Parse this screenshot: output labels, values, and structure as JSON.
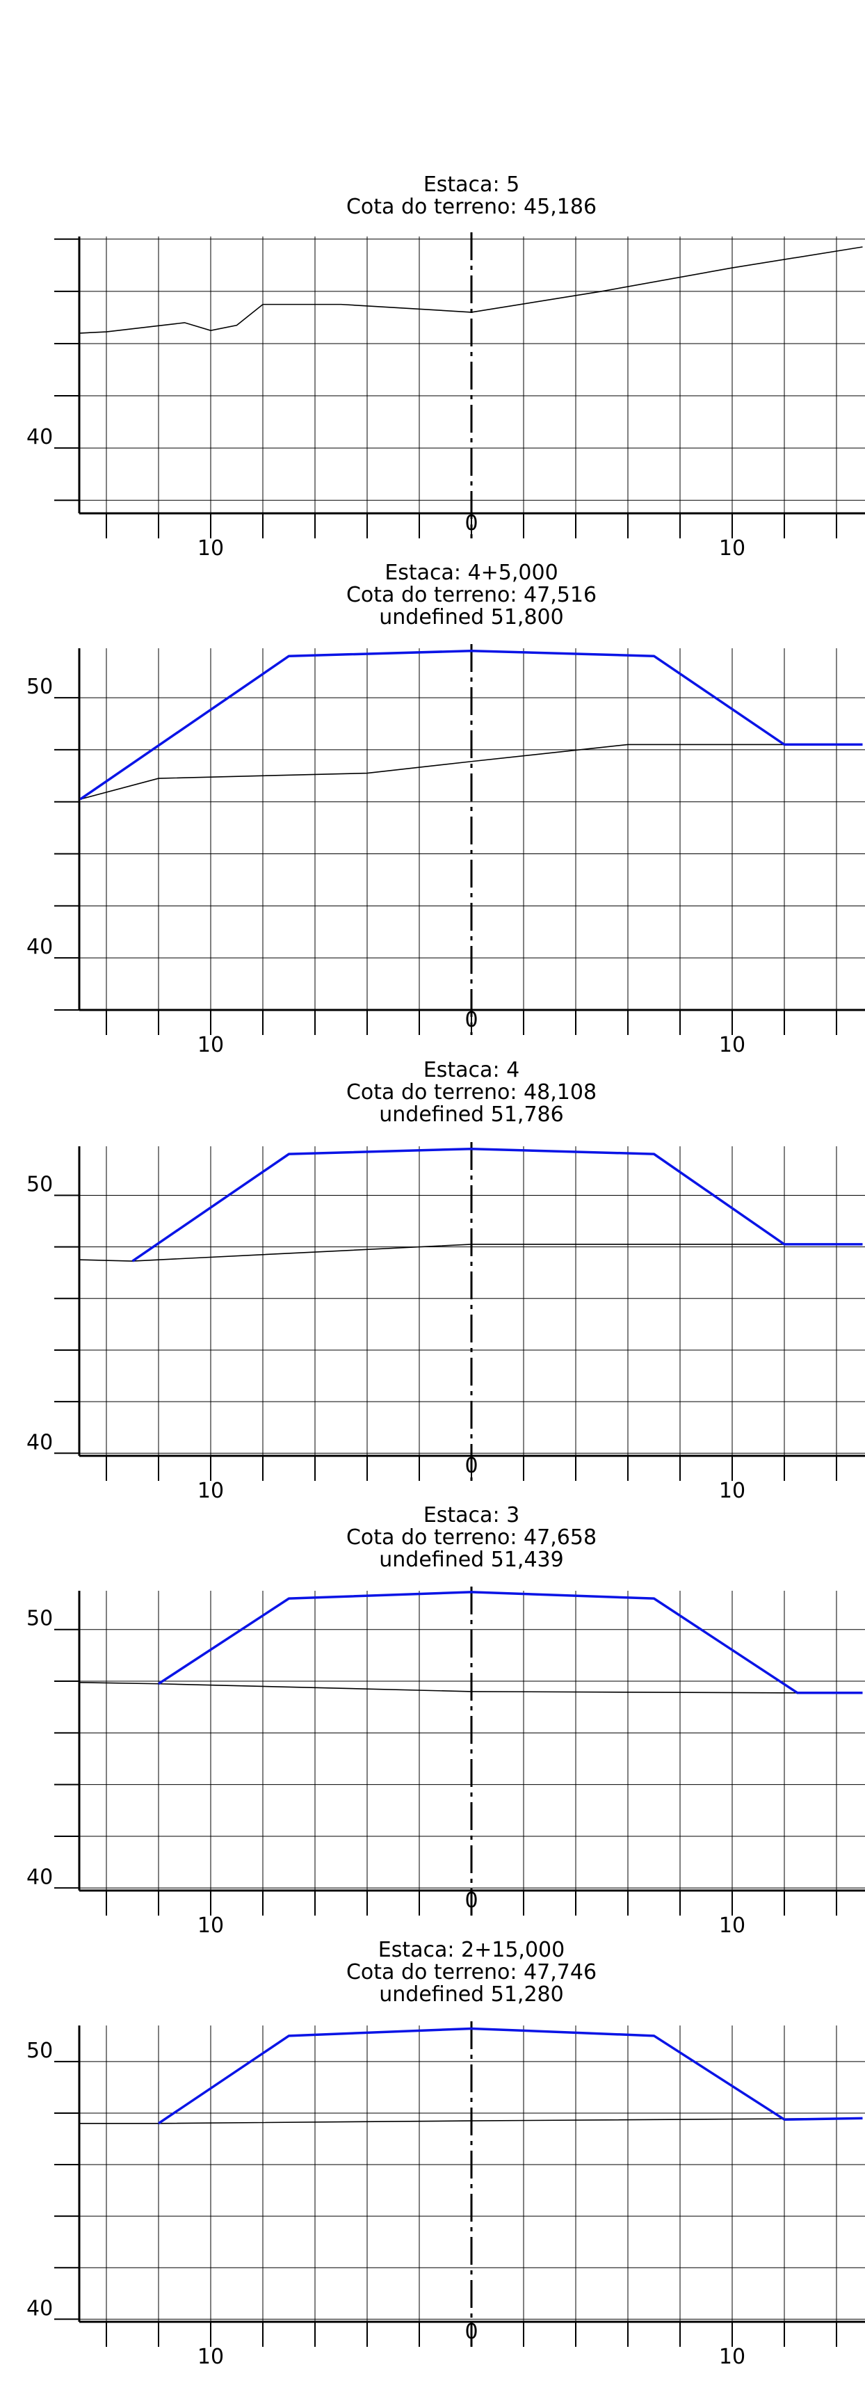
{
  "colors": {
    "grid": "#000000",
    "terrain": "#000000",
    "project": "#0a14e6"
  },
  "title_labels": {
    "station": "Estaca:",
    "terrain_elev": "Cota do terreno:",
    "project_elev": "Cota do projeto:"
  },
  "sections": [
    {
      "station": "5",
      "terrain_elevation": "45,186",
      "project_elevation": null,
      "ylim": [
        37.5,
        48.1
      ],
      "y_tick_labels": [
        {
          "value": 40,
          "text": "40"
        }
      ],
      "x_tick_labels": [
        {
          "value": -10,
          "text": "10"
        },
        {
          "value": 0,
          "text": "0"
        },
        {
          "value": 10,
          "text": "10"
        }
      ],
      "terrain": [
        [
          -15,
          44.4
        ],
        [
          -14,
          44.45
        ],
        [
          -11,
          44.8
        ],
        [
          -10,
          44.5
        ],
        [
          -9,
          44.7
        ],
        [
          -8,
          45.5
        ],
        [
          -5,
          45.5
        ],
        [
          0,
          45.2
        ],
        [
          5,
          46.0
        ],
        [
          10,
          46.9
        ],
        [
          15,
          47.7
        ]
      ],
      "project": []
    },
    {
      "station": "4+5,000",
      "terrain_elevation": "47,516",
      "project_elevation": "51,800",
      "ylim": [
        38.0,
        51.9
      ],
      "y_tick_labels": [
        {
          "value": 50,
          "text": "50"
        },
        {
          "value": 40,
          "text": "40"
        }
      ],
      "x_tick_labels": [
        {
          "value": -10,
          "text": "10"
        },
        {
          "value": 0,
          "text": "0"
        },
        {
          "value": 10,
          "text": "10"
        }
      ],
      "terrain": [
        [
          -15,
          46.1
        ],
        [
          -12,
          46.9
        ],
        [
          -4,
          47.1
        ],
        [
          0,
          47.55
        ],
        [
          6,
          48.2
        ],
        [
          15,
          48.2
        ]
      ],
      "project": [
        [
          -15,
          46.1
        ],
        [
          -7,
          51.6
        ],
        [
          0,
          51.8
        ],
        [
          7,
          51.6
        ],
        [
          12,
          48.2
        ],
        [
          15,
          48.2
        ]
      ]
    },
    {
      "station": "4",
      "terrain_elevation": "48,108",
      "project_elevation": "51,786",
      "ylim": [
        39.9,
        51.9
      ],
      "y_tick_labels": [
        {
          "value": 50,
          "text": "50"
        },
        {
          "value": 40,
          "text": "40"
        }
      ],
      "x_tick_labels": [
        {
          "value": -10,
          "text": "10"
        },
        {
          "value": 0,
          "text": "0"
        },
        {
          "value": 10,
          "text": "10"
        }
      ],
      "terrain": [
        [
          -15,
          47.5
        ],
        [
          -13,
          47.45
        ],
        [
          0,
          48.1
        ],
        [
          15,
          48.1
        ]
      ],
      "project": [
        [
          -13,
          47.45
        ],
        [
          -7,
          51.6
        ],
        [
          0,
          51.8
        ],
        [
          7,
          51.6
        ],
        [
          12,
          48.1
        ],
        [
          15,
          48.1
        ]
      ]
    },
    {
      "station": "3",
      "terrain_elevation": "47,658",
      "project_elevation": "51,439",
      "ylim": [
        39.9,
        51.5
      ],
      "y_tick_labels": [
        {
          "value": 50,
          "text": "50"
        },
        {
          "value": 40,
          "text": "40"
        }
      ],
      "x_tick_labels": [
        {
          "value": -10,
          "text": "10"
        },
        {
          "value": 0,
          "text": "0"
        },
        {
          "value": 10,
          "text": "10"
        }
      ],
      "terrain": [
        [
          -15,
          47.95
        ],
        [
          -12,
          47.9
        ],
        [
          0,
          47.6
        ],
        [
          12,
          47.55
        ],
        [
          15,
          47.55
        ]
      ],
      "project": [
        [
          -12,
          47.9
        ],
        [
          -7,
          51.2
        ],
        [
          0,
          51.45
        ],
        [
          7,
          51.2
        ],
        [
          12.5,
          47.55
        ],
        [
          15,
          47.55
        ]
      ]
    },
    {
      "station": "2+15,000",
      "terrain_elevation": "47,746",
      "project_elevation": "51,280",
      "ylim": [
        39.9,
        51.4
      ],
      "y_tick_labels": [
        {
          "value": 50,
          "text": "50"
        },
        {
          "value": 40,
          "text": "40"
        }
      ],
      "x_tick_labels": [
        {
          "value": -10,
          "text": "10"
        },
        {
          "value": 0,
          "text": "0"
        },
        {
          "value": 10,
          "text": "10"
        }
      ],
      "terrain": [
        [
          -15,
          47.6
        ],
        [
          -12,
          47.6
        ],
        [
          0,
          47.7
        ],
        [
          15,
          47.8
        ]
      ],
      "project": [
        [
          -12,
          47.6
        ],
        [
          -7,
          51.0
        ],
        [
          0,
          51.28
        ],
        [
          7,
          51.0
        ],
        [
          12,
          47.75
        ],
        [
          15,
          47.8
        ]
      ]
    }
  ]
}
